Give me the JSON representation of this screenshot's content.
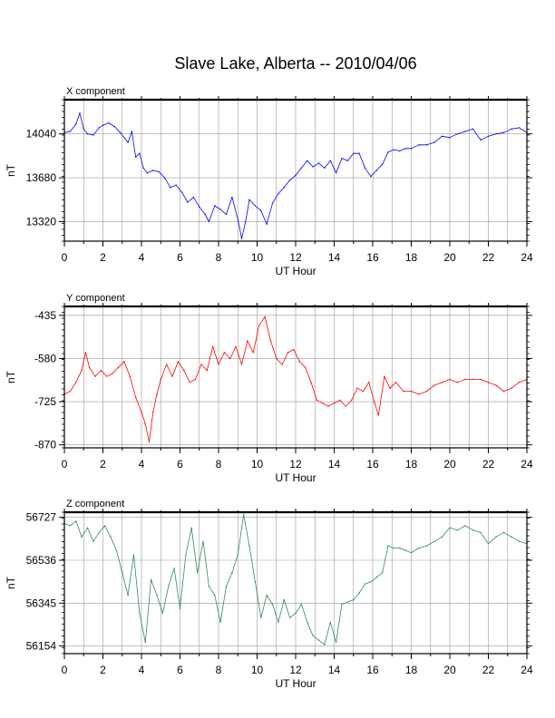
{
  "title": "Slave Lake, Alberta -- 2010/04/06",
  "chart_data": [
    {
      "type": "line",
      "panel_label": "X component",
      "xlabel": "UT Hour",
      "ylabel": "nT",
      "xlim": [
        0,
        24
      ],
      "ylim": [
        13160,
        14320
      ],
      "xticks": [
        0,
        2,
        4,
        6,
        8,
        10,
        12,
        14,
        16,
        18,
        20,
        22,
        24
      ],
      "yticks": [
        13320,
        13680,
        14040
      ],
      "grid": true,
      "color": "#0000ff",
      "x": [
        0,
        0.3,
        0.6,
        0.8,
        1.0,
        1.2,
        1.5,
        1.8,
        2.0,
        2.3,
        2.6,
        2.9,
        3.1,
        3.3,
        3.5,
        3.7,
        3.9,
        4.1,
        4.3,
        4.6,
        4.9,
        5.2,
        5.5,
        5.8,
        6.1,
        6.4,
        6.7,
        7.0,
        7.3,
        7.5,
        7.8,
        8.1,
        8.4,
        8.7,
        9.0,
        9.2,
        9.4,
        9.6,
        9.9,
        10.2,
        10.5,
        10.8,
        11.1,
        11.4,
        11.7,
        12.0,
        12.3,
        12.6,
        12.9,
        13.2,
        13.5,
        13.8,
        14.1,
        14.4,
        14.7,
        15.0,
        15.3,
        15.6,
        15.9,
        16.2,
        16.5,
        16.8,
        17.1,
        17.4,
        17.7,
        18.0,
        18.4,
        18.8,
        19.2,
        19.6,
        20.0,
        20.4,
        20.8,
        21.2,
        21.6,
        22.0,
        22.4,
        22.8,
        23.2,
        23.6,
        24.0
      ],
      "y": [
        14050,
        14060,
        14120,
        14210,
        14080,
        14040,
        14030,
        14090,
        14110,
        14130,
        14100,
        14050,
        14010,
        13970,
        14060,
        13850,
        13880,
        13760,
        13720,
        13740,
        13730,
        13680,
        13600,
        13620,
        13560,
        13480,
        13520,
        13440,
        13380,
        13320,
        13450,
        13420,
        13380,
        13520,
        13340,
        13180,
        13320,
        13500,
        13450,
        13410,
        13300,
        13470,
        13550,
        13600,
        13660,
        13700,
        13760,
        13820,
        13770,
        13800,
        13760,
        13820,
        13720,
        13840,
        13820,
        13880,
        13880,
        13760,
        13690,
        13740,
        13790,
        13890,
        13910,
        13900,
        13920,
        13920,
        13950,
        13950,
        13970,
        14020,
        14010,
        14040,
        14060,
        14080,
        13990,
        14020,
        14040,
        14050,
        14080,
        14090,
        14050
      ]
    },
    {
      "type": "line",
      "panel_label": "Y component",
      "xlabel": "UT Hour",
      "ylabel": "nT",
      "xlim": [
        0,
        24
      ],
      "ylim": [
        -880,
        -405
      ],
      "xticks": [
        0,
        2,
        4,
        6,
        8,
        10,
        12,
        14,
        16,
        18,
        20,
        22,
        24
      ],
      "yticks": [
        -435,
        -580,
        -725,
        -870
      ],
      "grid": true,
      "color": "#ff0000",
      "x": [
        0,
        0.3,
        0.6,
        0.9,
        1.1,
        1.3,
        1.6,
        1.9,
        2.2,
        2.5,
        2.8,
        3.1,
        3.4,
        3.7,
        4.0,
        4.2,
        4.4,
        4.6,
        4.8,
        5.0,
        5.3,
        5.6,
        5.9,
        6.2,
        6.5,
        6.8,
        7.1,
        7.4,
        7.7,
        8.0,
        8.3,
        8.6,
        8.9,
        9.2,
        9.5,
        9.8,
        10.1,
        10.4,
        10.7,
        11.0,
        11.3,
        11.6,
        11.9,
        12.2,
        12.5,
        12.8,
        13.1,
        13.4,
        13.7,
        14.0,
        14.3,
        14.6,
        14.9,
        15.2,
        15.5,
        15.8,
        16.1,
        16.3,
        16.6,
        16.9,
        17.2,
        17.6,
        18.0,
        18.4,
        18.8,
        19.2,
        19.6,
        20.0,
        20.4,
        20.8,
        21.2,
        21.6,
        22.0,
        22.4,
        22.8,
        23.2,
        23.6,
        24.0
      ],
      "y": [
        -700,
        -690,
        -660,
        -620,
        -560,
        -610,
        -640,
        -620,
        -640,
        -630,
        -610,
        -590,
        -640,
        -710,
        -760,
        -800,
        -860,
        -760,
        -700,
        -650,
        -600,
        -640,
        -590,
        -620,
        -660,
        -650,
        -600,
        -620,
        -540,
        -600,
        -560,
        -580,
        -540,
        -600,
        -520,
        -560,
        -470,
        -440,
        -520,
        -580,
        -600,
        -560,
        -550,
        -590,
        -610,
        -660,
        -720,
        -730,
        -740,
        -730,
        -720,
        -740,
        -720,
        -680,
        -690,
        -660,
        -730,
        -770,
        -640,
        -680,
        -660,
        -690,
        -690,
        -700,
        -690,
        -670,
        -660,
        -650,
        -660,
        -650,
        -650,
        -650,
        -660,
        -670,
        -690,
        -680,
        -660,
        -650
      ]
    },
    {
      "type": "line",
      "panel_label": "Z component",
      "xlabel": "UT Hour",
      "ylabel": "nT",
      "xlim": [
        0,
        24
      ],
      "ylim": [
        56120,
        56750
      ],
      "xticks": [
        0,
        2,
        4,
        6,
        8,
        10,
        12,
        14,
        16,
        18,
        20,
        22,
        24
      ],
      "yticks": [
        56727,
        56536,
        56345,
        56154
      ],
      "grid": true,
      "color": "#2e8b57",
      "x": [
        0,
        0.3,
        0.6,
        0.9,
        1.2,
        1.5,
        1.8,
        2.1,
        2.4,
        2.7,
        3.0,
        3.3,
        3.6,
        3.9,
        4.2,
        4.5,
        4.8,
        5.1,
        5.4,
        5.7,
        6.0,
        6.3,
        6.6,
        6.9,
        7.2,
        7.5,
        7.8,
        8.1,
        8.4,
        8.7,
        9.0,
        9.3,
        9.6,
        9.9,
        10.2,
        10.5,
        10.8,
        11.1,
        11.4,
        11.7,
        12.0,
        12.3,
        12.6,
        12.9,
        13.2,
        13.5,
        13.8,
        14.1,
        14.4,
        14.7,
        15.0,
        15.3,
        15.6,
        15.9,
        16.2,
        16.5,
        16.8,
        17.1,
        17.4,
        17.7,
        18.0,
        18.4,
        18.8,
        19.2,
        19.6,
        20.0,
        20.4,
        20.8,
        21.2,
        21.6,
        22.0,
        22.4,
        22.8,
        23.2,
        23.6,
        24.0
      ],
      "y": [
        56700,
        56690,
        56710,
        56640,
        56680,
        56620,
        56660,
        56690,
        56640,
        56580,
        56480,
        56380,
        56560,
        56300,
        56170,
        56450,
        56380,
        56300,
        56420,
        56500,
        56320,
        56560,
        56680,
        56480,
        56620,
        56420,
        56380,
        56260,
        56420,
        56480,
        56560,
        56740,
        56600,
        56440,
        56280,
        56380,
        56340,
        56260,
        56360,
        56280,
        56300,
        56340,
        56260,
        56200,
        56180,
        56160,
        56260,
        56170,
        56340,
        56350,
        56360,
        56390,
        56430,
        56440,
        56460,
        56480,
        56600,
        56590,
        56590,
        56580,
        56570,
        56590,
        56600,
        56620,
        56640,
        56680,
        56670,
        56690,
        56670,
        56660,
        56610,
        56640,
        56660,
        56640,
        56620,
        56610
      ]
    }
  ]
}
